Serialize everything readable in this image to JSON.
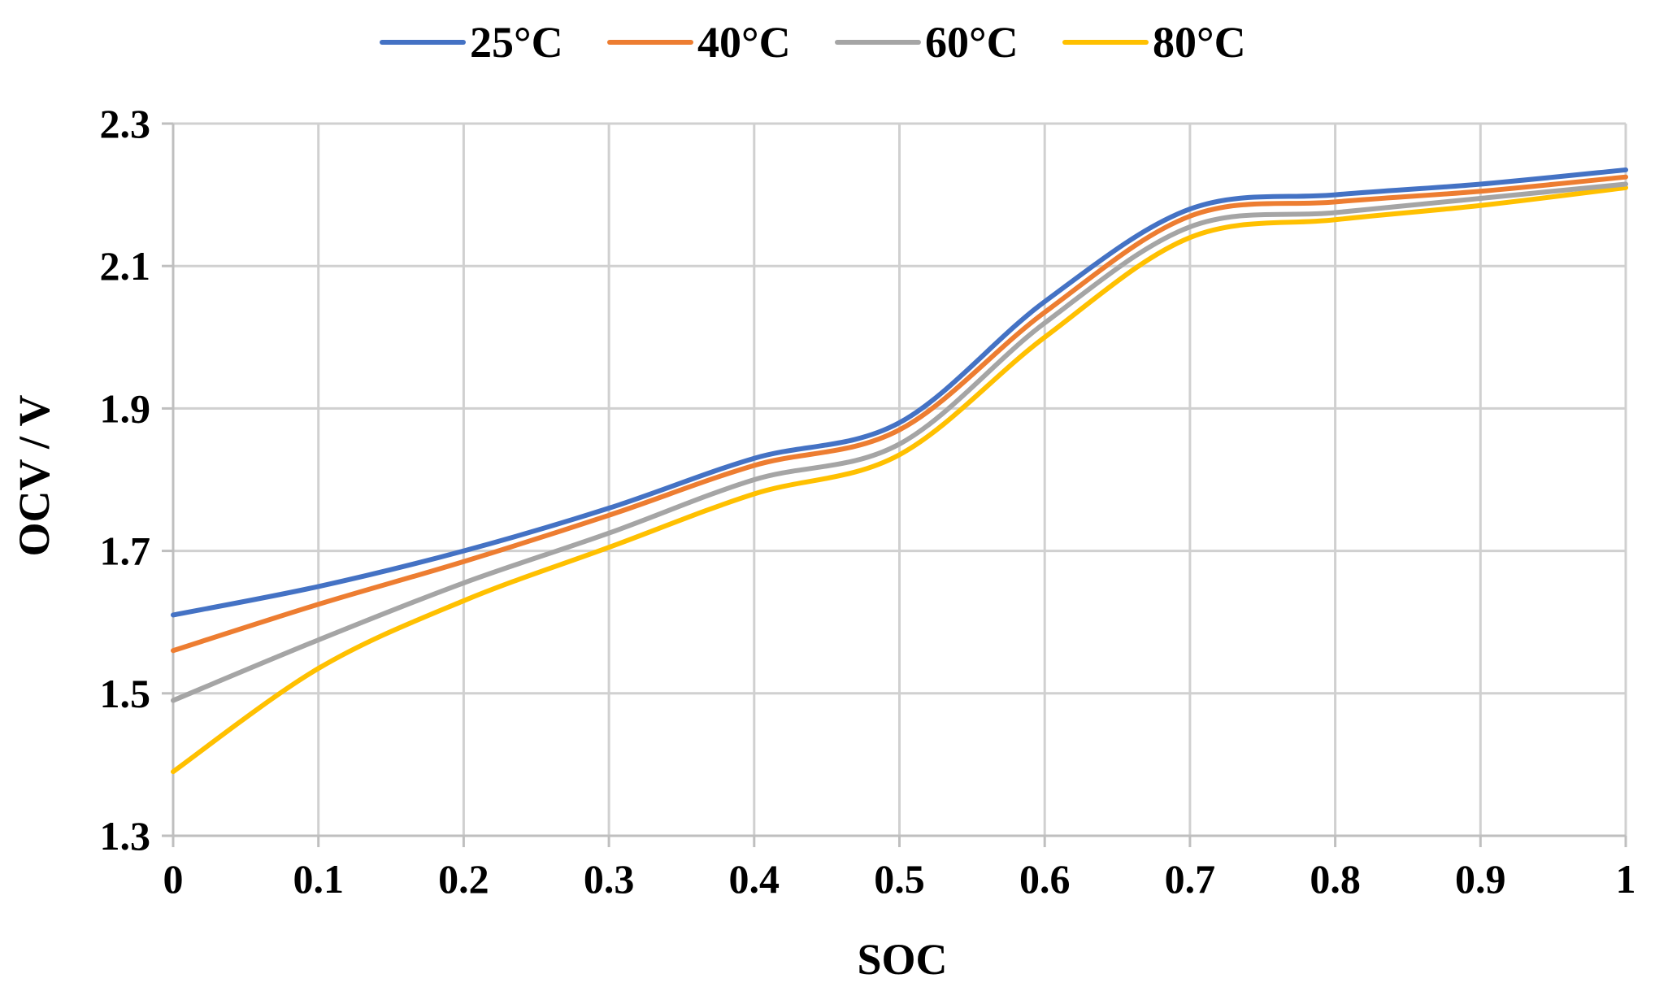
{
  "chart_data": {
    "type": "line",
    "title": "",
    "xlabel": "SOC",
    "ylabel": "OCV / V",
    "xlim": [
      0,
      1
    ],
    "ylim": [
      1.3,
      2.3
    ],
    "x_ticks": [
      0,
      0.1,
      0.2,
      0.3,
      0.4,
      0.5,
      0.6,
      0.7,
      0.8,
      0.9,
      1
    ],
    "x_tick_labels": [
      "0",
      "0.1",
      "0.2",
      "0.3",
      "0.4",
      "0.5",
      "0.6",
      "0.7",
      "0.8",
      "0.9",
      "1"
    ],
    "y_ticks": [
      1.3,
      1.5,
      1.7,
      1.9,
      2.1,
      2.3
    ],
    "y_tick_labels": [
      "1.3",
      "1.5",
      "1.7",
      "1.9",
      "2.1",
      "2.3"
    ],
    "grid": true,
    "legend_position": "top-center",
    "x": [
      0,
      0.1,
      0.2,
      0.3,
      0.4,
      0.5,
      0.6,
      0.7,
      0.8,
      0.9,
      1
    ],
    "series": [
      {
        "name": "25°C",
        "color": "#4472C4",
        "values": [
          1.61,
          1.65,
          1.7,
          1.76,
          1.83,
          1.88,
          2.05,
          2.18,
          2.2,
          2.215,
          2.235
        ]
      },
      {
        "name": "40°C",
        "color": "#ED7D31",
        "values": [
          1.56,
          1.625,
          1.685,
          1.75,
          1.82,
          1.87,
          2.035,
          2.17,
          2.19,
          2.205,
          2.225
        ]
      },
      {
        "name": "60°C",
        "color": "#A5A5A5",
        "values": [
          1.49,
          1.575,
          1.655,
          1.725,
          1.8,
          1.85,
          2.02,
          2.155,
          2.175,
          2.195,
          2.215
        ]
      },
      {
        "name": "80°C",
        "color": "#FFC000",
        "values": [
          1.39,
          1.535,
          1.63,
          1.705,
          1.78,
          1.835,
          2.0,
          2.14,
          2.165,
          2.185,
          2.21
        ]
      }
    ]
  }
}
